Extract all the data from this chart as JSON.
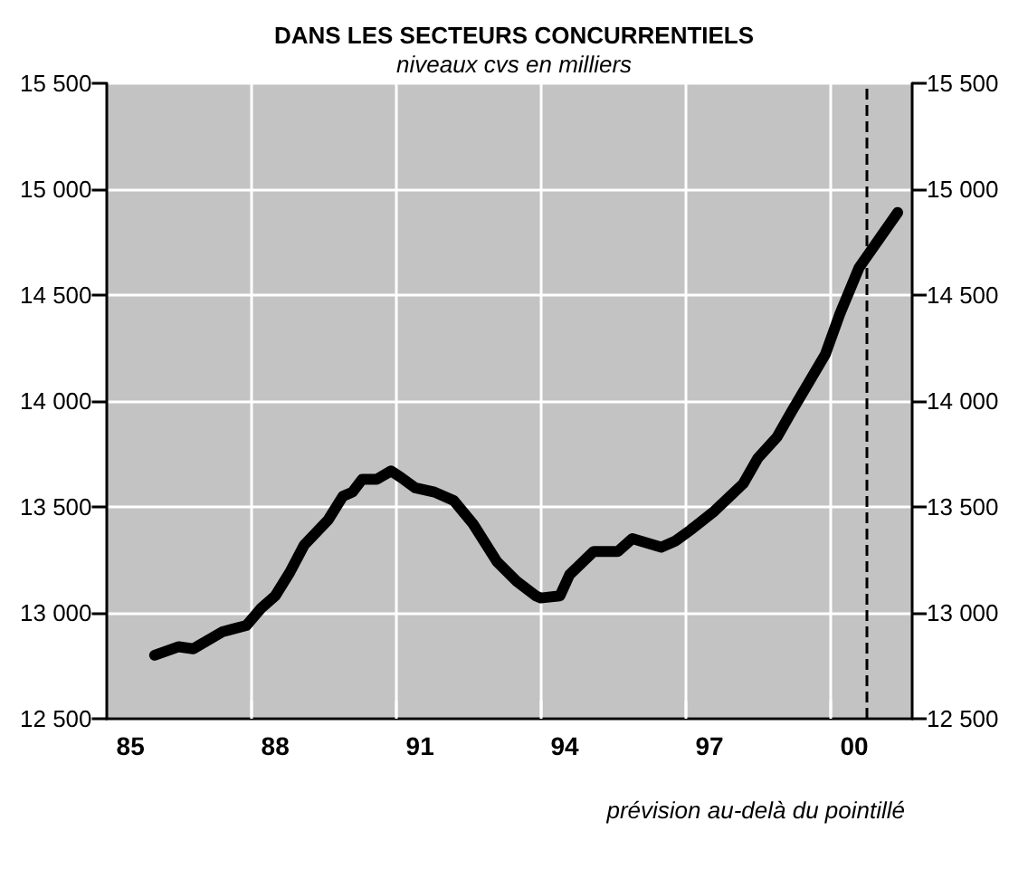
{
  "chart_data": {
    "type": "line",
    "title": "DANS LES SECTEURS CONCURRENTIELS",
    "subtitle": "niveaux cvs en milliers",
    "x": [
      1985.5,
      1986.0,
      1986.3,
      1986.9,
      1987.4,
      1987.7,
      1988.0,
      1988.3,
      1988.6,
      1989.1,
      1989.4,
      1989.6,
      1989.8,
      1990.1,
      1990.4,
      1990.6,
      1990.9,
      1991.3,
      1991.7,
      1992.1,
      1992.6,
      1993.0,
      1993.4,
      1993.5,
      1993.9,
      1994.1,
      1994.6,
      1995.1,
      1995.4,
      1996.0,
      1996.3,
      1996.6,
      1997.1,
      1997.7,
      1998.0,
      1998.4,
      1998.7,
      1999.4,
      1999.7,
      2000.1,
      2000.9
    ],
    "series": [
      {
        "color": "#000000",
        "values": [
          12800,
          12840,
          12830,
          12910,
          12940,
          13020,
          13080,
          13190,
          13320,
          13440,
          13550,
          13570,
          13630,
          13630,
          13670,
          13640,
          13590,
          13570,
          13530,
          13420,
          13240,
          13150,
          13080,
          13070,
          13080,
          13180,
          13290,
          13290,
          13350,
          13310,
          13340,
          13390,
          13480,
          13610,
          13730,
          13830,
          13950,
          14220,
          14410,
          14630,
          14890
        ]
      }
    ],
    "xlim": [
      1984.5,
      2001.2
    ],
    "xticks": [
      {
        "value": 1985,
        "label": "85"
      },
      {
        "value": 1987.5,
        "label": null
      },
      {
        "value": 1988,
        "label": "88"
      },
      {
        "value": 1990.5,
        "label": null
      },
      {
        "value": 1991,
        "label": "91"
      },
      {
        "value": 1993.5,
        "label": null
      },
      {
        "value": 1994,
        "label": "94"
      },
      {
        "value": 1996.5,
        "label": null
      },
      {
        "value": 1997,
        "label": "97"
      },
      {
        "value": 1999.5,
        "label": null
      },
      {
        "value": 2000,
        "label": "00"
      }
    ],
    "ylim": [
      12500,
      15500
    ],
    "yticks": [
      {
        "value": 12500,
        "label": "12 500"
      },
      {
        "value": 13000,
        "label": "13 000"
      },
      {
        "value": 13500,
        "label": "13 500"
      },
      {
        "value": 14000,
        "label": "14 000"
      },
      {
        "value": 14500,
        "label": "14 500"
      },
      {
        "value": 15000,
        "label": "15 000"
      },
      {
        "value": 15500,
        "label": "15 500"
      }
    ],
    "y2lim": [
      12500,
      15500
    ],
    "y2ticks": [
      {
        "value": 12500,
        "label": "12 500"
      },
      {
        "value": 13000,
        "label": "13 000"
      },
      {
        "value": 13500,
        "label": "13 500"
      },
      {
        "value": 14000,
        "label": "14 000"
      },
      {
        "value": 14500,
        "label": "14 500"
      },
      {
        "value": 15000,
        "label": "15 000"
      },
      {
        "value": 15500,
        "label": "15 500"
      }
    ],
    "ref_lines": [
      {
        "axis": "x",
        "value": 2000.25,
        "color": "#000000",
        "line_style": "dashed"
      }
    ],
    "annotations": [
      "prévision au-delà du pointillé"
    ],
    "grid": true,
    "marker": "none",
    "line_style": "solid"
  }
}
